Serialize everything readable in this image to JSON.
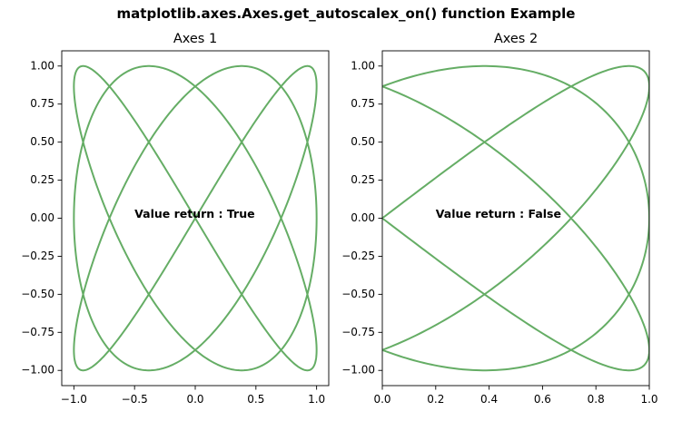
{
  "figure": {
    "suptitle": "matplotlib.axes.Axes.get_autoscalex_on() function Example"
  },
  "colors": {
    "curve": "#65ad65"
  },
  "chart_data": [
    {
      "type": "line",
      "title": "Axes 1",
      "xlabel": "",
      "ylabel": "",
      "series": [
        {
          "function": "x = sin(3t + pi/2), y = sin(4t), t in [0, 2pi]"
        }
      ],
      "xlim": [
        -1.1,
        1.1
      ],
      "ylim": [
        -1.1,
        1.1
      ],
      "xticks": [
        -1.0,
        -0.5,
        0.0,
        0.5,
        1.0
      ],
      "xtick_labels": [
        "−1.0",
        "−0.5",
        "0.0",
        "0.5",
        "1.0"
      ],
      "yticks": [
        -1.0,
        -0.75,
        -0.5,
        -0.25,
        0.0,
        0.25,
        0.5,
        0.75,
        1.0
      ],
      "ytick_labels": [
        "−1.00",
        "−0.75",
        "−0.50",
        "−0.25",
        "0.00",
        "0.25",
        "0.50",
        "0.75",
        "1.00"
      ],
      "grid": false,
      "annotation": {
        "text": "Value return : True",
        "x": -0.5,
        "y": 0.0
      }
    },
    {
      "type": "line",
      "title": "Axes 2",
      "xlabel": "",
      "ylabel": "",
      "series": [
        {
          "function": "x = sin(3t + pi/2), y = sin(4t), t in [0, 2pi]"
        }
      ],
      "xlim": [
        0.0,
        1.0
      ],
      "ylim": [
        -1.1,
        1.1
      ],
      "xticks": [
        0.0,
        0.2,
        0.4,
        0.6,
        0.8,
        1.0
      ],
      "xtick_labels": [
        "0.0",
        "0.2",
        "0.4",
        "0.6",
        "0.8",
        "1.0"
      ],
      "yticks": [
        -1.0,
        -0.75,
        -0.5,
        -0.25,
        0.0,
        0.25,
        0.5,
        0.75,
        1.0
      ],
      "ytick_labels": [
        "−1.00",
        "−0.75",
        "−0.50",
        "−0.25",
        "0.00",
        "0.25",
        "0.50",
        "0.75",
        "1.00"
      ],
      "grid": false,
      "annotation": {
        "text": "Value return : False",
        "x": 0.2,
        "y": 0.0
      }
    }
  ]
}
